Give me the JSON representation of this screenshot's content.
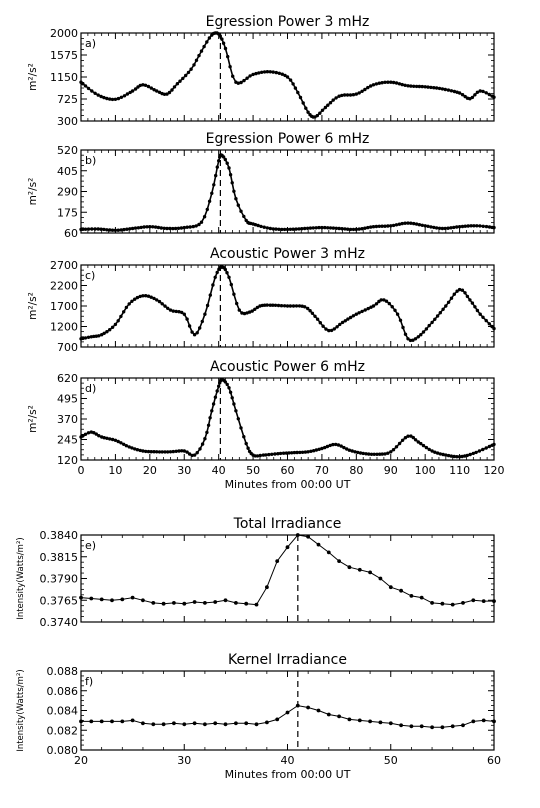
{
  "chart_data": [
    {
      "type": "line",
      "title": "Egression Power 3 mHz",
      "panel_label": "a)",
      "ylabel": "m²/s²",
      "xlabel": "",
      "xlim": [
        0,
        120
      ],
      "ylim": [
        300,
        2000
      ],
      "yticks": [
        "300",
        "725",
        "1150",
        "1575",
        "2000"
      ],
      "xticks": [],
      "marker_x": 40.5,
      "series": [
        {
          "x": [
            0,
            5,
            10,
            15,
            18,
            22,
            25,
            28,
            32,
            35,
            38,
            40,
            42,
            45,
            50,
            55,
            60,
            63,
            66,
            68,
            71,
            75,
            80,
            85,
            90,
            95,
            100,
            105,
            110,
            113,
            116,
            120
          ],
          "y": [
            1050,
            800,
            720,
            880,
            1000,
            880,
            820,
            1020,
            1300,
            1650,
            1960,
            1980,
            1700,
            1050,
            1200,
            1250,
            1150,
            850,
            470,
            380,
            560,
            780,
            820,
            1000,
            1050,
            980,
            960,
            920,
            840,
            730,
            880,
            760
          ]
        }
      ]
    },
    {
      "type": "line",
      "title": "Egression Power 6 mHz",
      "panel_label": "b)",
      "ylabel": "m²/s²",
      "xlabel": "",
      "xlim": [
        0,
        120
      ],
      "ylim": [
        60,
        520
      ],
      "yticks": [
        "60",
        "175",
        "290",
        "405",
        "520"
      ],
      "xticks": [],
      "marker_x": 40.5,
      "series": [
        {
          "x": [
            0,
            5,
            10,
            15,
            20,
            25,
            30,
            35,
            38,
            40,
            41,
            43,
            45,
            48,
            50,
            55,
            60,
            65,
            70,
            75,
            80,
            85,
            90,
            95,
            100,
            105,
            110,
            115,
            120
          ],
          "y": [
            80,
            82,
            75,
            85,
            95,
            85,
            90,
            120,
            280,
            460,
            490,
            420,
            250,
            130,
            110,
            85,
            80,
            85,
            90,
            85,
            80,
            95,
            100,
            115,
            100,
            85,
            95,
            100,
            90
          ]
        }
      ]
    },
    {
      "type": "line",
      "title": "Acoustic Power 3 mHz",
      "panel_label": "c)",
      "ylabel": "m²/s²",
      "xlabel": "",
      "xlim": [
        0,
        120
      ],
      "ylim": [
        700,
        2700
      ],
      "yticks": [
        "700",
        "1200",
        "1700",
        "2200",
        "2700"
      ],
      "xticks": [],
      "marker_x": 40.5,
      "series": [
        {
          "x": [
            0,
            3,
            6,
            10,
            14,
            18,
            22,
            26,
            30,
            33,
            36,
            39,
            41,
            43,
            46,
            49,
            52,
            55,
            60,
            65,
            68,
            72,
            76,
            80,
            85,
            88,
            92,
            95,
            98,
            102,
            106,
            110,
            113,
            116,
            120
          ],
          "y": [
            900,
            950,
            1000,
            1250,
            1750,
            1950,
            1850,
            1600,
            1500,
            1000,
            1500,
            2400,
            2650,
            2400,
            1600,
            1550,
            1700,
            1720,
            1700,
            1680,
            1450,
            1100,
            1300,
            1500,
            1700,
            1850,
            1500,
            900,
            950,
            1300,
            1700,
            2100,
            1850,
            1500,
            1150
          ]
        }
      ]
    },
    {
      "type": "line",
      "title": "Acoustic Power 6 mHz",
      "panel_label": "d)",
      "ylabel": "m²/s²",
      "xlabel": "Minutes from 00:00 UT",
      "xlim": [
        0,
        120
      ],
      "ylim": [
        120,
        620
      ],
      "yticks": [
        "120",
        "245",
        "370",
        "495",
        "620"
      ],
      "xticks": [
        "0",
        "10",
        "20",
        "30",
        "40",
        "50",
        "60",
        "70",
        "80",
        "90",
        "100",
        "110",
        "120"
      ],
      "marker_x": 40.5,
      "series": [
        {
          "x": [
            0,
            3,
            6,
            10,
            14,
            18,
            22,
            26,
            30,
            33,
            36,
            38,
            40,
            41,
            43,
            45,
            48,
            50,
            53,
            58,
            62,
            66,
            70,
            74,
            78,
            82,
            86,
            90,
            95,
            98,
            102,
            106,
            110,
            114,
            120
          ],
          "y": [
            260,
            290,
            260,
            240,
            200,
            175,
            170,
            170,
            175,
            150,
            250,
            420,
            570,
            610,
            560,
            420,
            220,
            150,
            150,
            160,
            165,
            170,
            190,
            215,
            180,
            160,
            155,
            170,
            265,
            230,
            175,
            150,
            140,
            160,
            215
          ]
        }
      ]
    },
    {
      "type": "line",
      "title": "Total Irradiance",
      "panel_label": "e)",
      "ylabel": "Intensity(Watts/m²)",
      "xlabel": "",
      "xlim": [
        20,
        60
      ],
      "ylim": [
        0.374,
        0.384
      ],
      "yticks": [
        "0.3740",
        "0.3765",
        "0.3790",
        "0.3815",
        "0.3840"
      ],
      "xticks": [],
      "marker_x": 41,
      "series": [
        {
          "x": [
            20,
            21,
            22,
            23,
            24,
            25,
            26,
            27,
            28,
            29,
            30,
            31,
            32,
            33,
            34,
            35,
            36,
            37,
            38,
            39,
            40,
            41,
            42,
            43,
            44,
            45,
            46,
            47,
            48,
            49,
            50,
            51,
            52,
            53,
            54,
            55,
            56,
            57,
            58,
            59,
            60
          ],
          "y": [
            0.3768,
            0.3767,
            0.3766,
            0.3765,
            0.3766,
            0.3768,
            0.3765,
            0.3762,
            0.3761,
            0.3762,
            0.3761,
            0.3763,
            0.3762,
            0.3763,
            0.3765,
            0.3762,
            0.3761,
            0.376,
            0.378,
            0.381,
            0.3826,
            0.384,
            0.3838,
            0.3829,
            0.382,
            0.381,
            0.3803,
            0.38,
            0.3797,
            0.379,
            0.378,
            0.3776,
            0.377,
            0.3768,
            0.3762,
            0.3761,
            0.376,
            0.3762,
            0.3765,
            0.3764,
            0.3764
          ]
        }
      ]
    },
    {
      "type": "line",
      "title": "Kernel Irradiance",
      "panel_label": "f)",
      "ylabel": "Intensity(Watts/m²)",
      "xlabel": "Minutes from 00:00 UT",
      "xlim": [
        20,
        60
      ],
      "ylim": [
        0.08,
        0.088
      ],
      "yticks": [
        "0.080",
        "0.082",
        "0.084",
        "0.086",
        "0.088"
      ],
      "xticks": [
        "20",
        "30",
        "40",
        "50",
        "60"
      ],
      "marker_x": 41,
      "series": [
        {
          "x": [
            20,
            21,
            22,
            23,
            24,
            25,
            26,
            27,
            28,
            29,
            30,
            31,
            32,
            33,
            34,
            35,
            36,
            37,
            38,
            39,
            40,
            41,
            42,
            43,
            44,
            45,
            46,
            47,
            48,
            49,
            50,
            51,
            52,
            53,
            54,
            55,
            56,
            57,
            58,
            59,
            60
          ],
          "y": [
            0.0829,
            0.0829,
            0.0829,
            0.0829,
            0.0829,
            0.083,
            0.0827,
            0.0826,
            0.0826,
            0.0827,
            0.0826,
            0.0827,
            0.0826,
            0.0827,
            0.0826,
            0.0827,
            0.0827,
            0.0826,
            0.0828,
            0.0831,
            0.0838,
            0.0845,
            0.0843,
            0.084,
            0.0836,
            0.0834,
            0.0831,
            0.083,
            0.0829,
            0.0828,
            0.0827,
            0.0825,
            0.0824,
            0.0824,
            0.0823,
            0.0823,
            0.0824,
            0.0825,
            0.0829,
            0.083,
            0.0829
          ]
        }
      ]
    }
  ]
}
